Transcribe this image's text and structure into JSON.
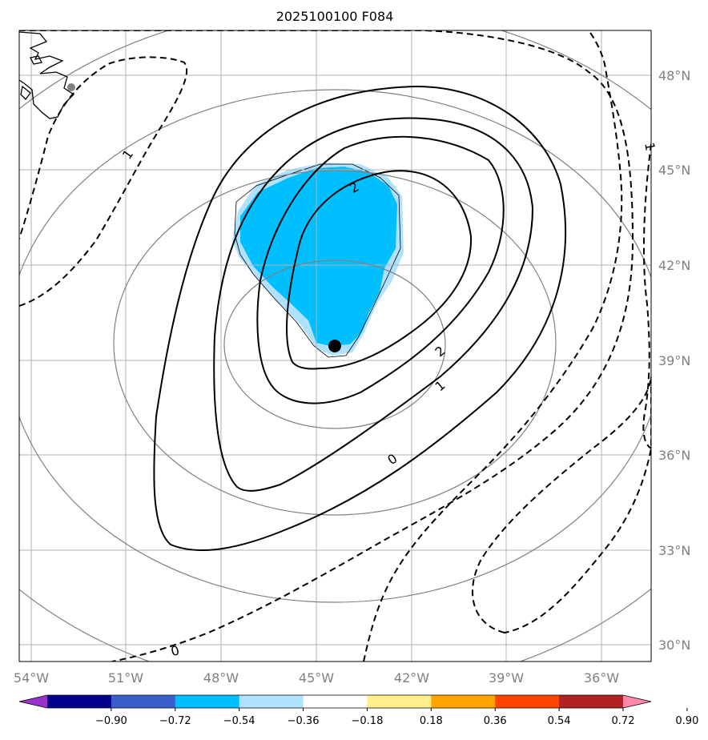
{
  "title": "2025100100 F084",
  "lon_labels": [
    "54°W",
    "51°W",
    "48°W",
    "45°W",
    "42°W",
    "39°W",
    "36°W"
  ],
  "lat_labels": [
    "48°N",
    "45°N",
    "42°N",
    "39°N",
    "36°N",
    "33°N",
    "30°N"
  ],
  "colorbar": {
    "colors": [
      "#9932cc",
      "#00008b",
      "#3a5fcd",
      "#00bfff",
      "#b0e2ff",
      "#ffffff",
      "#fff08c",
      "#ffa500",
      "#ff4500",
      "#b22222",
      "#ff88aa"
    ],
    "labels": [
      "−0.90",
      "−0.72",
      "−0.54",
      "−0.36",
      "−0.18",
      "0.18",
      "0.36",
      "0.54",
      "0.72",
      "0.90"
    ]
  },
  "contour_labels": {
    "solid_2_upper": "2",
    "solid_2_right": "2",
    "solid_1": "1",
    "solid_0": "0",
    "dashed_1_left": "1",
    "dashed_0_bottom": "0",
    "dashed_1_right": "1"
  },
  "colors": {
    "shading_main": "#00bfff",
    "shading_edge": "#b0e2ff",
    "grid": "#b0b0b0",
    "range_rings": "#808080",
    "axis_label": "#808080"
  },
  "center_marker": "filled-circle"
}
